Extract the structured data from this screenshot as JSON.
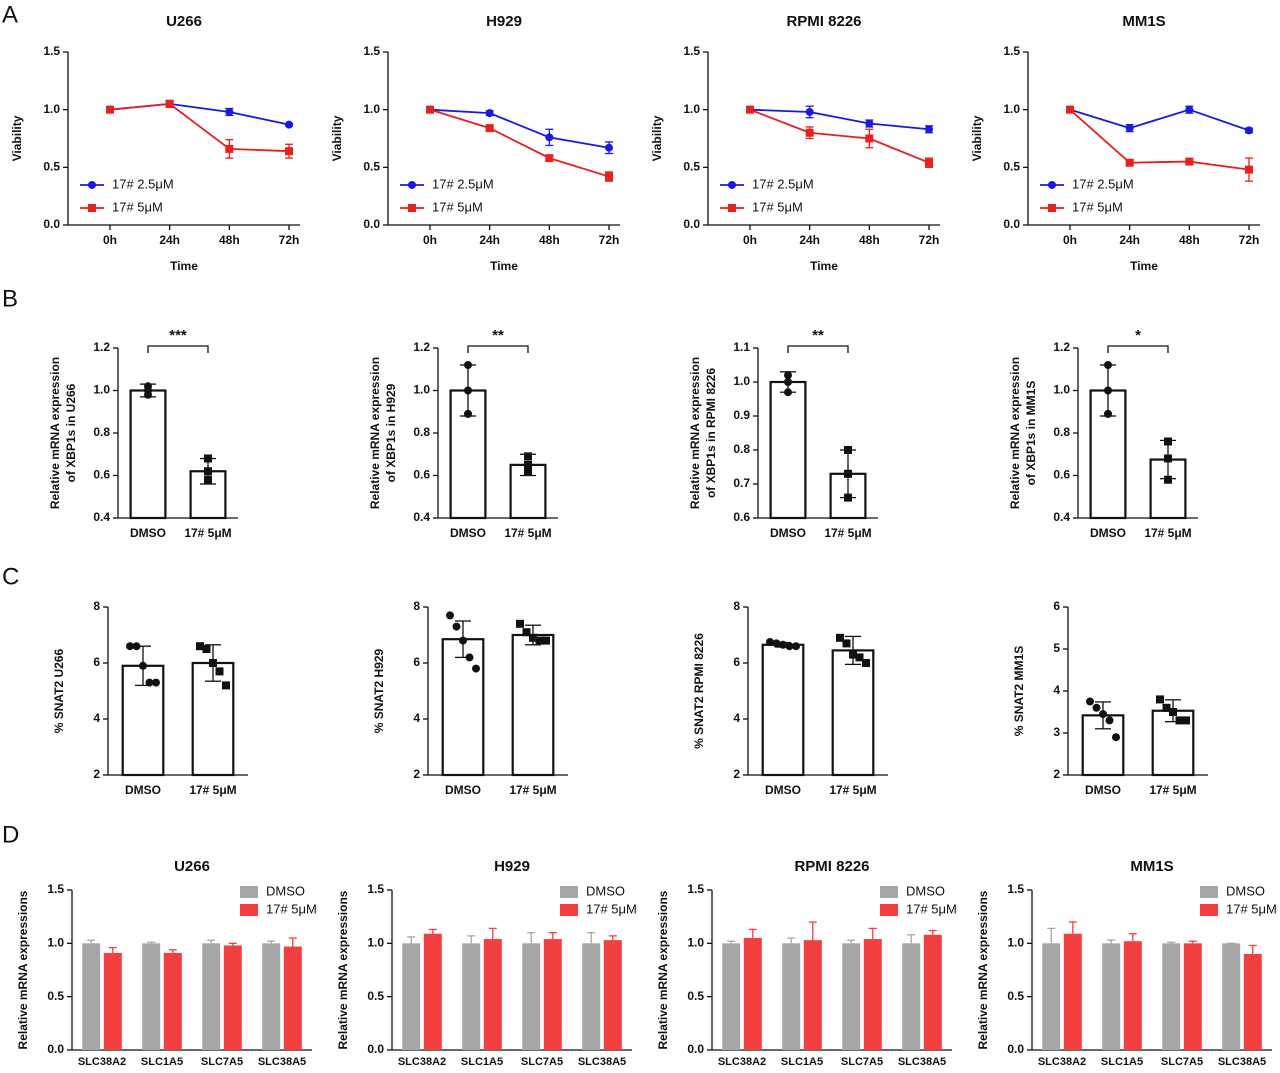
{
  "panels": [
    "A",
    "B",
    "C",
    "D"
  ],
  "chart_data": [
    {
      "type": "line",
      "title": "U266",
      "xlabel": "Time",
      "ylabel": "Viability",
      "categories": [
        "0h",
        "24h",
        "48h",
        "72h"
      ],
      "ylim": [
        0,
        1.5
      ],
      "yticks": [
        {
          "value": 0,
          "label": "0.0"
        },
        0.5,
        {
          "value": 1,
          "label": "1.0"
        },
        1.5
      ],
      "legend": "lower left",
      "series": [
        {
          "name": "17# 2.5μM",
          "color": "#1a1adb",
          "marker": "circle",
          "values": [
            1.0,
            1.05,
            0.98,
            0.87
          ],
          "errors": [
            0.01,
            0.03,
            0.03,
            0.01
          ]
        },
        {
          "name": "17# 5μM",
          "color": "#e8201e",
          "marker": "square",
          "values": [
            1.0,
            1.05,
            0.66,
            0.64
          ],
          "errors": [
            0.01,
            0.02,
            0.08,
            0.06
          ]
        }
      ]
    },
    {
      "type": "line",
      "title": "H929",
      "xlabel": "Time",
      "ylabel": "Viability",
      "categories": [
        "0h",
        "24h",
        "48h",
        "72h"
      ],
      "ylim": [
        0,
        1.5
      ],
      "yticks": [
        {
          "value": 0,
          "label": "0.0"
        },
        0.5,
        {
          "value": 1,
          "label": "1.0"
        },
        1.5
      ],
      "legend": "lower left",
      "series": [
        {
          "name": "17# 2.5μM",
          "color": "#1a1adb",
          "marker": "circle",
          "values": [
            1.0,
            0.97,
            0.76,
            0.67
          ],
          "errors": [
            0.01,
            0.02,
            0.07,
            0.05
          ]
        },
        {
          "name": "17# 5μM",
          "color": "#e8201e",
          "marker": "square",
          "values": [
            1.0,
            0.84,
            0.58,
            0.42
          ],
          "errors": [
            0.01,
            0.02,
            0.02,
            0.04
          ]
        }
      ]
    },
    {
      "type": "line",
      "title": "RPMI 8226",
      "xlabel": "Time",
      "ylabel": "Viability",
      "categories": [
        "0h",
        "24h",
        "48h",
        "72h"
      ],
      "ylim": [
        0,
        1.5
      ],
      "yticks": [
        {
          "value": 0,
          "label": "0.0"
        },
        0.5,
        {
          "value": 1,
          "label": "1.0"
        },
        1.5
      ],
      "legend": "lower left",
      "series": [
        {
          "name": "17# 2.5μM",
          "color": "#1a1adb",
          "marker": "circle",
          "values": [
            1.0,
            0.98,
            0.88,
            0.83
          ],
          "errors": [
            0.01,
            0.05,
            0.03,
            0.03
          ]
        },
        {
          "name": "17# 5μM",
          "color": "#e8201e",
          "marker": "square",
          "values": [
            1.0,
            0.8,
            0.75,
            0.54
          ],
          "errors": [
            0.01,
            0.05,
            0.08,
            0.04
          ]
        }
      ]
    },
    {
      "type": "line",
      "title": "MM1S",
      "xlabel": "Time",
      "ylabel": "Viability",
      "categories": [
        "0h",
        "24h",
        "48h",
        "72h"
      ],
      "ylim": [
        0,
        1.5
      ],
      "yticks": [
        {
          "value": 0,
          "label": "0.0"
        },
        0.5,
        {
          "value": 1,
          "label": "1.0"
        },
        1.5
      ],
      "legend": "lower left",
      "series": [
        {
          "name": "17# 2.5μM",
          "color": "#1a1adb",
          "marker": "circle",
          "values": [
            1.0,
            0.84,
            1.0,
            0.82
          ],
          "errors": [
            0.01,
            0.03,
            0.03,
            0.02
          ]
        },
        {
          "name": "17# 5μM",
          "color": "#e8201e",
          "marker": "square",
          "values": [
            1.0,
            0.54,
            0.55,
            0.48
          ],
          "errors": [
            0.01,
            0.02,
            0.01,
            0.1
          ]
        }
      ]
    },
    {
      "type": "bar",
      "ylabel": [
        "Relative mRNA expression",
        "of XBP1s in U266"
      ],
      "annotation": "***",
      "categories": [
        "DMSO",
        "17# 5μM"
      ],
      "values": [
        1.0,
        0.62
      ],
      "errors": [
        0.03,
        0.06
      ],
      "points": [
        [
          1.02,
          0.98,
          1.0
        ],
        [
          0.68,
          0.62,
          0.58
        ]
      ],
      "point_markers": [
        "circle",
        "square"
      ],
      "ylim": [
        0.4,
        1.2
      ],
      "yticks": [
        0.4,
        0.6,
        0.8,
        {
          "value": 1,
          "label": "1.0"
        },
        1.2
      ]
    },
    {
      "type": "bar",
      "ylabel": [
        "Relative mRNA expression",
        "of XBP1s in H929"
      ],
      "annotation": "**",
      "categories": [
        "DMSO",
        "17# 5μM"
      ],
      "values": [
        1.0,
        0.65
      ],
      "errors": [
        0.12,
        0.05
      ],
      "points": [
        [
          1.12,
          0.89,
          1.0
        ],
        [
          0.69,
          0.62,
          0.65
        ]
      ],
      "point_markers": [
        "circle",
        "square"
      ],
      "ylim": [
        0.4,
        1.2
      ],
      "yticks": [
        0.4,
        0.6,
        0.8,
        {
          "value": 1,
          "label": "1.0"
        },
        1.2
      ]
    },
    {
      "type": "bar",
      "ylabel": [
        "Relative mRNA expression",
        "of XBP1s in RPMI 8226"
      ],
      "annotation": "**",
      "categories": [
        "DMSO",
        "17# 5μM"
      ],
      "values": [
        1.0,
        0.73
      ],
      "errors": [
        0.03,
        0.07
      ],
      "points": [
        [
          1.02,
          0.97,
          1.0
        ],
        [
          0.8,
          0.66,
          0.73
        ]
      ],
      "point_markers": [
        "circle",
        "square"
      ],
      "ylim": [
        0.6,
        1.1
      ],
      "yticks": [
        0.6,
        0.7,
        0.8,
        0.9,
        {
          "value": 1,
          "label": "1.0"
        },
        1.1
      ]
    },
    {
      "type": "bar",
      "ylabel": [
        "Relative mRNA expression",
        "of XBP1s in MM1S"
      ],
      "annotation": "*",
      "categories": [
        "DMSO",
        "17# 5μM"
      ],
      "values": [
        1.0,
        0.675
      ],
      "errors": [
        0.12,
        0.09
      ],
      "points": [
        [
          1.12,
          0.89,
          1.0
        ],
        [
          0.76,
          0.58,
          0.68
        ]
      ],
      "point_markers": [
        "circle",
        "square"
      ],
      "ylim": [
        0.4,
        1.2
      ],
      "yticks": [
        0.4,
        0.6,
        0.8,
        {
          "value": 1,
          "label": "1.0"
        },
        1.2
      ]
    },
    {
      "type": "bar",
      "ylabel": [
        "% SNAT2 U266"
      ],
      "categories": [
        "DMSO",
        "17# 5μM"
      ],
      "values": [
        5.9,
        6.0
      ],
      "errors": [
        0.7,
        0.65
      ],
      "points": [
        [
          6.6,
          6.6,
          5.9,
          5.3,
          5.3
        ],
        [
          6.6,
          6.5,
          6.0,
          5.7,
          5.2
        ]
      ],
      "point_markers": [
        "circle",
        "square"
      ],
      "ylim": [
        2,
        8
      ],
      "yticks": [
        2,
        4,
        6,
        8
      ]
    },
    {
      "type": "bar",
      "ylabel": [
        "% SNAT2 H929"
      ],
      "categories": [
        "DMSO",
        "17# 5μM"
      ],
      "values": [
        6.85,
        7.0
      ],
      "errors": [
        0.65,
        0.35
      ],
      "points": [
        [
          7.7,
          7.3,
          6.8,
          6.2,
          5.8
        ],
        [
          7.4,
          7.1,
          6.9,
          6.8,
          6.8
        ]
      ],
      "point_markers": [
        "circle",
        "square"
      ],
      "ylim": [
        2,
        8
      ],
      "yticks": [
        2,
        4,
        6,
        8
      ]
    },
    {
      "type": "bar",
      "ylabel": [
        "% SNAT2 RPMI 8226"
      ],
      "categories": [
        "DMSO",
        "17# 5μM"
      ],
      "values": [
        6.65,
        6.45
      ],
      "errors": [
        0.08,
        0.5
      ],
      "points": [
        [
          6.75,
          6.7,
          6.65,
          6.6,
          6.6
        ],
        [
          6.9,
          6.7,
          6.3,
          6.2,
          6.0
        ]
      ],
      "point_markers": [
        "circle",
        "square"
      ],
      "ylim": [
        2,
        8
      ],
      "yticks": [
        2,
        4,
        6,
        8
      ]
    },
    {
      "type": "bar",
      "ylabel": [
        "% SNAT2 MM1S"
      ],
      "categories": [
        "DMSO",
        "17# 5μM"
      ],
      "values": [
        3.42,
        3.53
      ],
      "errors": [
        0.32,
        0.26
      ],
      "points": [
        [
          3.75,
          3.6,
          3.45,
          3.3,
          2.9
        ],
        [
          3.8,
          3.6,
          3.5,
          3.3,
          3.3
        ]
      ],
      "point_markers": [
        "circle",
        "square"
      ],
      "ylim": [
        2,
        6
      ],
      "yticks": [
        2,
        3,
        4,
        5,
        6
      ]
    },
    {
      "type": "bar",
      "title": "U266",
      "ylabel": [
        "Relative mRNA expressions"
      ],
      "categories": [
        "SLC38A2",
        "SLC1A5",
        "SLC7A5",
        "SLC38A5"
      ],
      "ylim": [
        0,
        1.5
      ],
      "yticks": [
        {
          "value": 0,
          "label": "0.0"
        },
        0.5,
        {
          "value": 1,
          "label": "1.0"
        },
        1.5
      ],
      "legend": "upper right",
      "series": [
        {
          "name": "DMSO",
          "color": "#a6a6a6",
          "values": [
            1,
            1,
            1,
            1
          ],
          "errors": [
            0.03,
            0.01,
            0.03,
            0.02
          ]
        },
        {
          "name": "17# 5μM",
          "color": "#f23f3f",
          "values": [
            0.91,
            0.91,
            0.98,
            0.97
          ],
          "errors": [
            0.05,
            0.03,
            0.02,
            0.08
          ]
        }
      ]
    },
    {
      "type": "bar",
      "title": "H929",
      "ylabel": [
        "Relative mRNA expressions"
      ],
      "categories": [
        "SLC38A2",
        "SLC1A5",
        "SLC7A5",
        "SLC38A5"
      ],
      "ylim": [
        0,
        1.5
      ],
      "yticks": [
        {
          "value": 0,
          "label": "0.0"
        },
        0.5,
        {
          "value": 1,
          "label": "1.0"
        },
        1.5
      ],
      "legend": "upper right",
      "series": [
        {
          "name": "DMSO",
          "color": "#a6a6a6",
          "values": [
            1,
            1,
            1,
            1
          ],
          "errors": [
            0.06,
            0.07,
            0.1,
            0.1
          ]
        },
        {
          "name": "17# 5μM",
          "color": "#f23f3f",
          "values": [
            1.09,
            1.04,
            1.04,
            1.03
          ],
          "errors": [
            0.04,
            0.1,
            0.06,
            0.04
          ]
        }
      ]
    },
    {
      "type": "bar",
      "title": "RPMI 8226",
      "ylabel": [
        "Relative mRNA expressions"
      ],
      "categories": [
        "SLC38A2",
        "SLC1A5",
        "SLC7A5",
        "SLC38A5"
      ],
      "ylim": [
        0,
        1.5
      ],
      "yticks": [
        {
          "value": 0,
          "label": "0.0"
        },
        0.5,
        {
          "value": 1,
          "label": "1.0"
        },
        1.5
      ],
      "legend": "upper right",
      "series": [
        {
          "name": "DMSO",
          "color": "#a6a6a6",
          "values": [
            1,
            1,
            1,
            1
          ],
          "errors": [
            0.02,
            0.05,
            0.03,
            0.08
          ]
        },
        {
          "name": "17# 5μM",
          "color": "#f23f3f",
          "values": [
            1.05,
            1.03,
            1.04,
            1.08
          ],
          "errors": [
            0.08,
            0.17,
            0.1,
            0.04
          ]
        }
      ]
    },
    {
      "type": "bar",
      "title": "MM1S",
      "ylabel": [
        "Relative mRNA expressions"
      ],
      "categories": [
        "SLC38A2",
        "SLC1A5",
        "SLC7A5",
        "SLC38A5"
      ],
      "ylim": [
        0,
        1.5
      ],
      "yticks": [
        {
          "value": 0,
          "label": "0.0"
        },
        0.5,
        {
          "value": 1,
          "label": "1.0"
        },
        1.5
      ],
      "legend": "upper right",
      "series": [
        {
          "name": "DMSO",
          "color": "#a6a6a6",
          "values": [
            1,
            1,
            1,
            1
          ],
          "errors": [
            0.14,
            0.03,
            0.01,
            0
          ]
        },
        {
          "name": "17# 5μM",
          "color": "#f23f3f",
          "values": [
            1.09,
            1.02,
            1.0,
            0.9
          ],
          "errors": [
            0.11,
            0.07,
            0.02,
            0.08
          ]
        }
      ]
    }
  ]
}
